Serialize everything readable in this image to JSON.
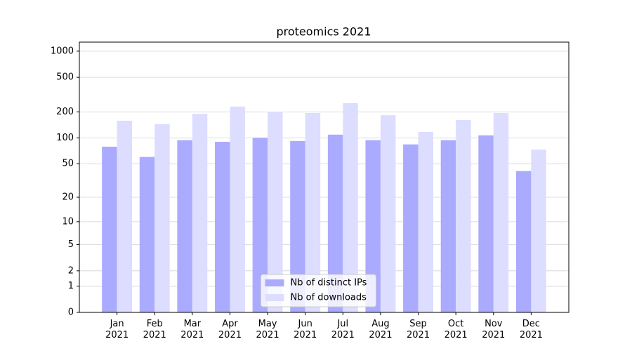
{
  "chart_data": {
    "type": "bar",
    "title": "proteomics 2021",
    "categories": [
      "Jan 2021",
      "Feb 2021",
      "Mar 2021",
      "Apr 2021",
      "May 2021",
      "Jun 2021",
      "Jul 2021",
      "Aug 2021",
      "Sep 2021",
      "Oct 2021",
      "Nov 2021",
      "Dec 2021"
    ],
    "series": [
      {
        "name": "Nb of distinct IPs",
        "color": "#aaaaff",
        "values": [
          79,
          60,
          94,
          90,
          100,
          92,
          109,
          94,
          84,
          94,
          107,
          41
        ]
      },
      {
        "name": "Nb of downloads",
        "color": "#ddddff",
        "values": [
          158,
          144,
          190,
          230,
          201,
          194,
          252,
          183,
          117,
          161,
          194,
          73
        ]
      }
    ],
    "yscale": "log1p",
    "ylim": [
      0,
      1270
    ],
    "yticks": [
      0,
      1,
      2,
      5,
      10,
      20,
      50,
      100,
      200,
      500,
      1000
    ],
    "grid": true,
    "legend": "lower center"
  }
}
